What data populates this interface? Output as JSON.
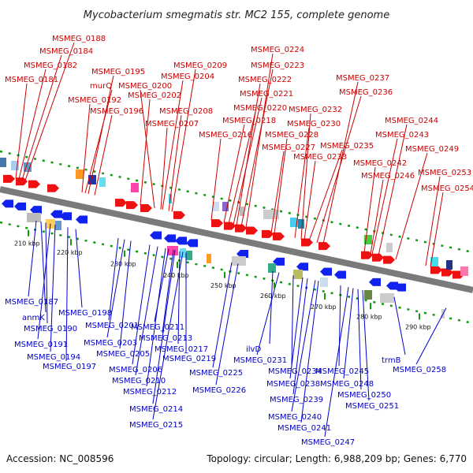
{
  "title": "Mycobacterium smegmatis str. MC2 155, complete genome",
  "footer": {
    "accession": "Accession: NC_008596",
    "summary": "Topology: circular; Length: 6,988,209 bp; Genes: 6,770"
  },
  "colors": {
    "forward_label": "#cc0000",
    "reverse_label": "#0000cc",
    "forward_gene": "#ee1111",
    "reverse_gene": "#1122ee",
    "backbone": "#7a7a7a",
    "tick": "#119911"
  },
  "ticks_kbp": [
    "210 kbp",
    "220 kbp",
    "230 kbp",
    "240 kbp",
    "250 kbp",
    "260 kbp",
    "270 kbp",
    "280 kbp",
    "290 kbp"
  ],
  "top_labels": [
    "MSMEG_0188",
    "MSMEG_0184",
    "MSMEG_0182",
    "MSMEG_0181",
    "MSMEG_0195",
    "murQ",
    "MSMEG_0192",
    "MSMEG_0196",
    "MSMEG_0209",
    "MSMEG_0204",
    "MSMEG_0200",
    "MSMEG_0202",
    "MSMEG_0208",
    "MSMEG_0207",
    "MSMEG_0224",
    "MSMEG_0223",
    "MSMEG_0222",
    "MSMEG_0221",
    "MSMEG_0220",
    "MSMEG_0218",
    "MSMEG_0216",
    "MSMEG_0237",
    "MSMEG_0236",
    "MSMEG_0232",
    "MSMEG_0230",
    "MSMEG_0228",
    "MSMEG_0227",
    "MSMEG_0235",
    "MSMEG_0233",
    "MSMEG_0244",
    "MSMEG_0243",
    "MSMEG_0249",
    "MSMEG_0242",
    "MSMEG_0246",
    "MSMEG_0253",
    "MSMEG_0254"
  ],
  "bottom_labels": [
    "MSMEG_0187",
    "anmK",
    "MSMEG_0190",
    "MSMEG_0191",
    "MSMEG_0194",
    "MSMEG_0197",
    "MSMEG_0198",
    "MSMEG_0201",
    "MSMEG_0203",
    "MSMEG_0205",
    "MSMEG_0206",
    "MSMEG_0210",
    "MSMEG_0212",
    "MSMEG_0211",
    "MSMEG_0213",
    "MSMEG_0217",
    "MSMEG_0219",
    "MSMEG_0214",
    "MSMEG_0215",
    "MSMEG_0225",
    "MSMEG_0226",
    "ilvD",
    "MSMEG_0231",
    "MSMEG_0234",
    "MSMEG_0238",
    "MSMEG_0239",
    "MSMEG_0240",
    "MSMEG_0241",
    "MSMEG_0245",
    "MSMEG_0247",
    "MSMEG_0248",
    "MSMEG_0250",
    "MSMEG_0251",
    "trmB",
    "MSMEG_0258"
  ]
}
